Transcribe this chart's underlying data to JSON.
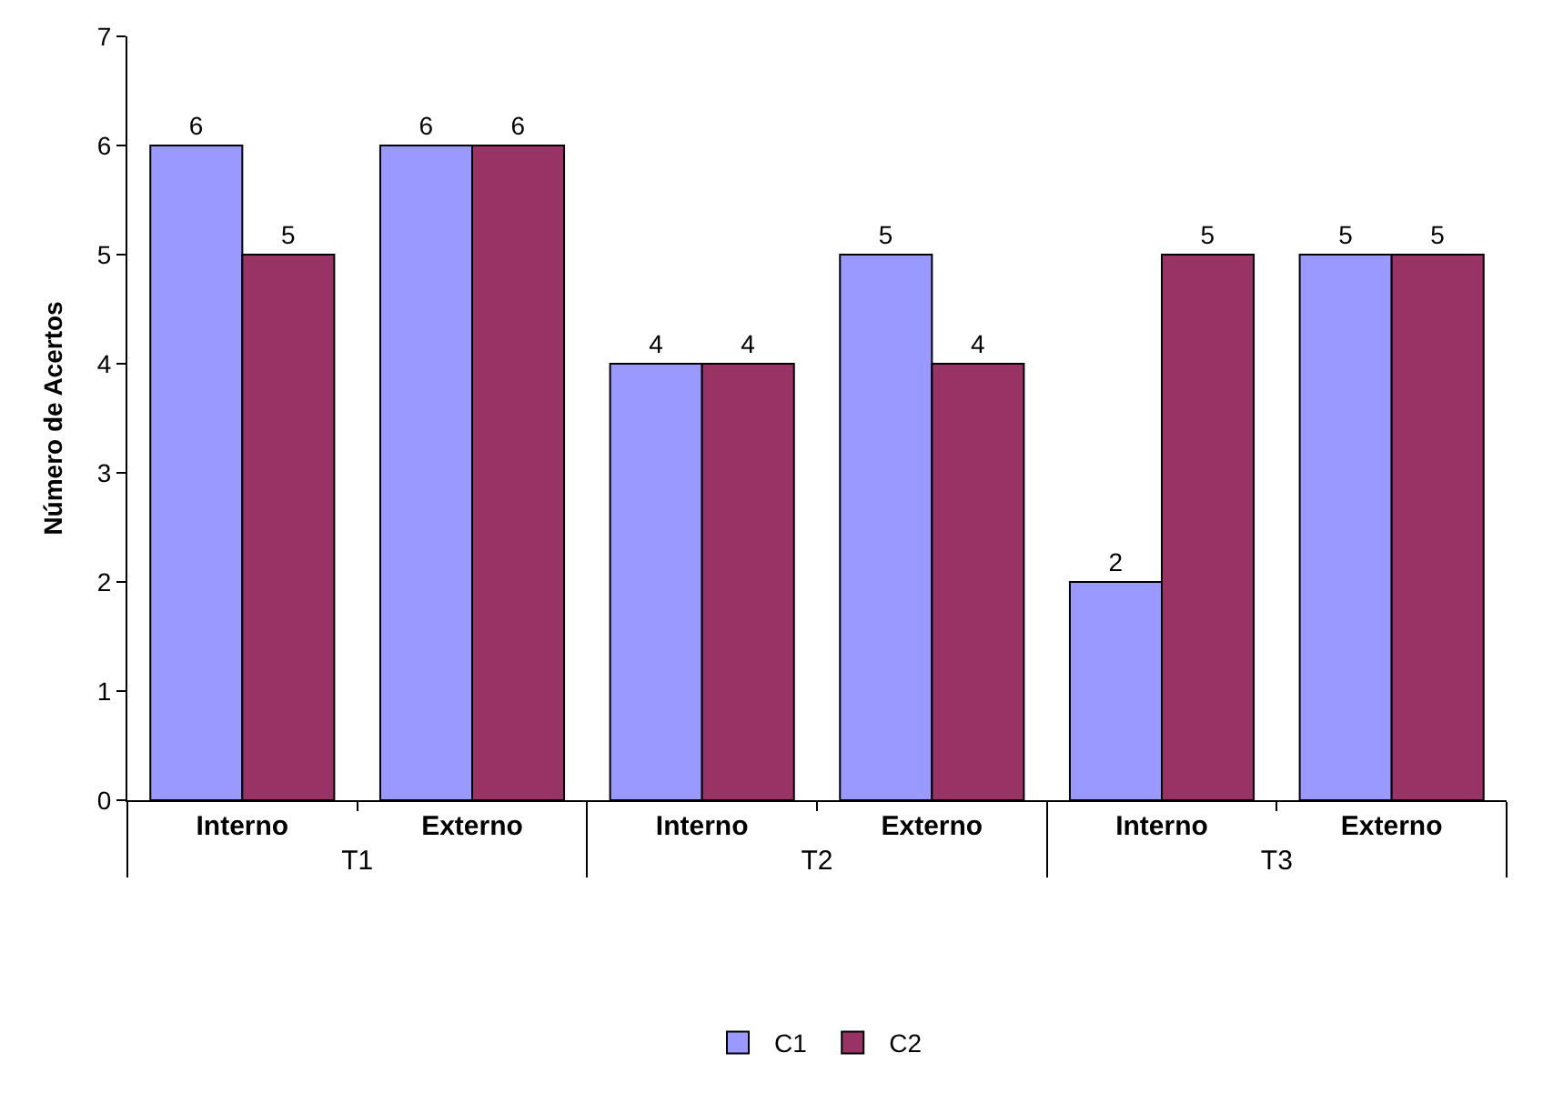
{
  "chart_data": {
    "type": "bar",
    "ylabel": "Número de Acertos",
    "categories": [
      "Interno",
      "Externo",
      "Interno",
      "Externo",
      "Interno",
      "Externo"
    ],
    "annotations": [
      "T1",
      "T2",
      "T3"
    ],
    "series": [
      {
        "name": "C1",
        "color": "#9999ff",
        "values": [
          6,
          6,
          4,
          5,
          2,
          5
        ]
      },
      {
        "name": "C2",
        "color": "#993366",
        "values": [
          5,
          6,
          4,
          4,
          5,
          5
        ]
      }
    ],
    "ylim": [
      0,
      7
    ],
    "yticks": [
      0,
      1,
      2,
      3,
      4,
      5,
      6,
      7
    ],
    "grid": false,
    "legend": "bottom",
    "data_labels": true
  }
}
